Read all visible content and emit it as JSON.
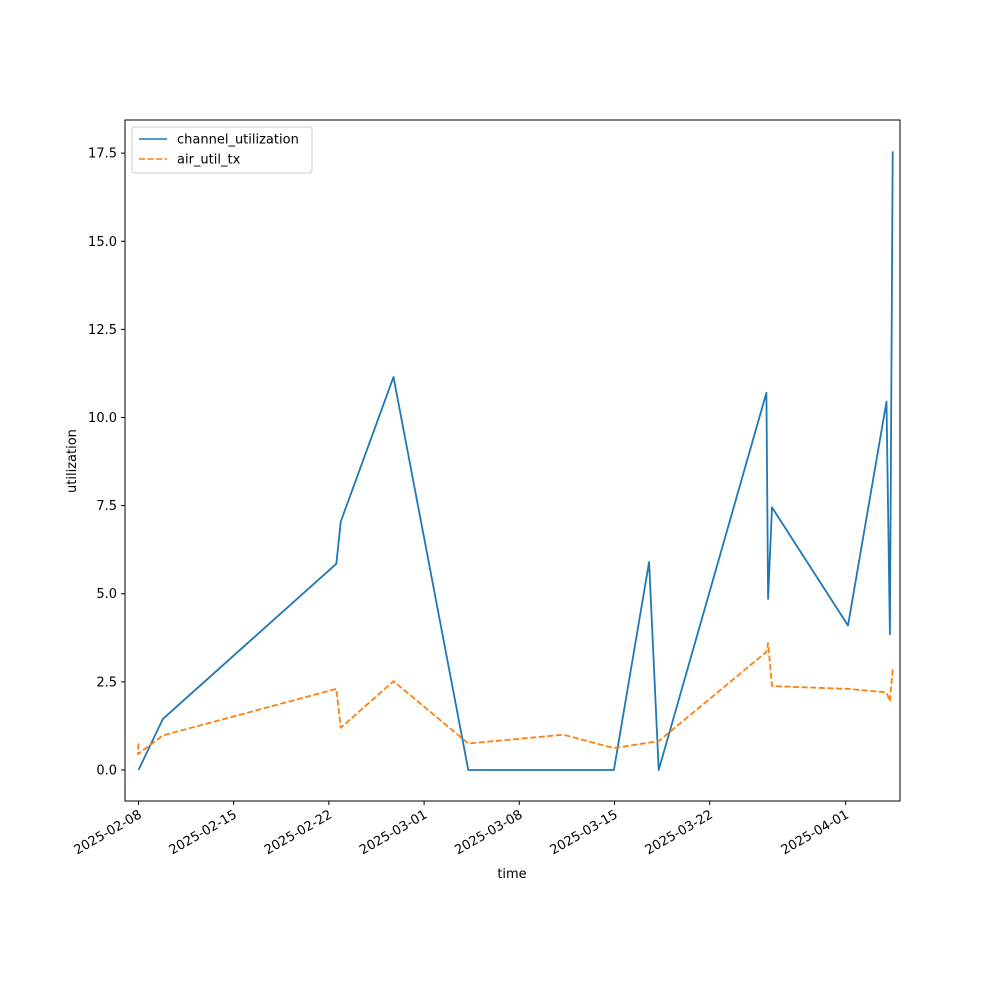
{
  "chart_data": {
    "type": "line",
    "title": "",
    "xlabel": "time",
    "ylabel": "utilization",
    "xlim": [
      "2025-02-07T00:09",
      "2025-04-04T23:50"
    ],
    "ylim": [
      -0.88,
      18.44
    ],
    "x_ticks": [
      "2025-02-08",
      "2025-02-15",
      "2025-02-22",
      "2025-03-01",
      "2025-03-08",
      "2025-03-15",
      "2025-03-22",
      "2025-04-01"
    ],
    "y_ticks": [
      0.0,
      2.5,
      5.0,
      7.5,
      10.0,
      12.5,
      15.0,
      17.5
    ],
    "y_tick_labels": [
      "0.0",
      "2.5",
      "5.0",
      "7.5",
      "10.0",
      "12.5",
      "15.0",
      "17.5"
    ],
    "grid": false,
    "legend": "top-left",
    "series": [
      {
        "name": "channel_utilization",
        "color": "#1f77b4",
        "style": "solid",
        "x": [
          "2025-02-08T00:00",
          "2025-02-09T19:00",
          "2025-02-22T13:00",
          "2025-02-22T21:00",
          "2025-02-26T18:00",
          "2025-03-04T06:00",
          "2025-03-14T23:00",
          "2025-03-17T13:00",
          "2025-03-18T06:00",
          "2025-03-26T04:00",
          "2025-03-26T07:00",
          "2025-03-26T14:00",
          "2025-04-01T04:00",
          "2025-04-04T00:00",
          "2025-04-04T06:00",
          "2025-04-04T11:00"
        ],
        "values": [
          0.0,
          1.45,
          5.85,
          7.05,
          11.15,
          0.0,
          0.0,
          5.9,
          0.0,
          10.7,
          4.85,
          7.45,
          4.1,
          10.45,
          3.85,
          17.55
        ]
      },
      {
        "name": "air_util_tx",
        "color": "#ff7f0e",
        "style": "dashed",
        "x": [
          "2025-02-08T00:00",
          "2025-02-07T23:00",
          "2025-02-09T19:00",
          "2025-02-22T13:00",
          "2025-02-22T21:00",
          "2025-02-26T18:00",
          "2025-03-04T06:00",
          "2025-03-11T06:00",
          "2025-03-14T23:00",
          "2025-03-18T06:00",
          "2025-03-26T04:00",
          "2025-03-26T07:00",
          "2025-03-26T14:00",
          "2025-04-01T04:00",
          "2025-04-04T00:00",
          "2025-04-04T06:00",
          "2025-04-04T11:00"
        ],
        "values": [
          0.75,
          0.45,
          0.98,
          2.3,
          1.2,
          2.52,
          0.75,
          1.0,
          0.62,
          0.82,
          3.35,
          3.6,
          2.38,
          2.3,
          2.2,
          1.95,
          2.85
        ]
      }
    ]
  }
}
